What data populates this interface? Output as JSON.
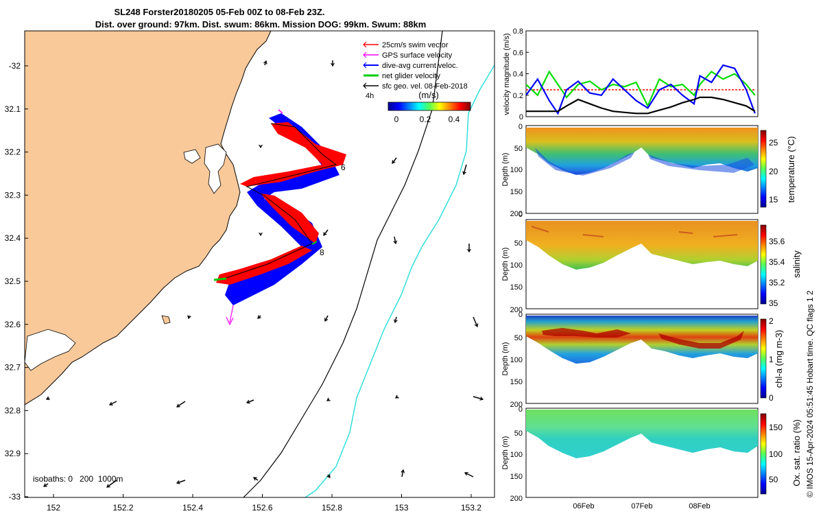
{
  "title": {
    "line1": "SL248 Forster20180205 05-Feb 00Z to 08-Feb 23Z.",
    "line2": "Dist. over ground: 97km. Dist. swum: 86km. Mission DOG: 99km. Swum: 88km"
  },
  "map": {
    "x_ticks": [
      "152",
      "152.2",
      "152.4",
      "152.6",
      "152.8",
      "153",
      "153.2"
    ],
    "y_ticks": [
      "-32",
      "32.1",
      "32.2",
      "32.3",
      "32.4",
      "32.5",
      "32.6",
      "32.7",
      "32.8",
      "32.9",
      "-33"
    ],
    "legend": [
      {
        "label": "25cm/s swim vector",
        "color": "#ff0000"
      },
      {
        "label": "GPS surface velocity",
        "color": "#ff00ff"
      },
      {
        "label": "dive-avg current veloc.",
        "color": "#0000ff"
      },
      {
        "label": "net glider velocity",
        "color": "#00cc00"
      },
      {
        "label": "sfc geo. vel. 08-Feb-2018",
        "color": "#000000"
      }
    ],
    "scale_label": "4h",
    "colorbar": {
      "unit": "(m/s)",
      "ticks": [
        "0",
        "0.2",
        "0.4"
      ]
    },
    "day_markers": [
      "6",
      "8"
    ],
    "isobaths_label": "isobaths: 0   200  1000m",
    "colors": {
      "land": "#f9c99a",
      "isobath_1000": "#33dddd"
    }
  },
  "chart_data": [
    {
      "type": "line",
      "ylabel": "velocity magnitude (m/s)",
      "ylim": [
        0,
        0.8
      ],
      "yticks": [
        "0",
        "0.2",
        "0.4",
        "0.6",
        "0.8"
      ],
      "x_days": [
        0,
        0.2,
        0.4,
        0.55,
        0.7,
        0.9,
        1.1,
        1.3,
        1.5,
        1.7,
        1.9,
        2.1,
        2.3,
        2.5,
        2.7,
        2.9,
        3.0,
        3.2,
        3.4,
        3.6,
        3.8,
        3.95
      ],
      "series": [
        {
          "color": "#ff0000",
          "values": [
            0.25,
            0.25,
            0.25,
            0.25,
            0.25,
            0.25,
            0.25,
            0.25,
            0.25,
            0.25,
            0.25,
            0.25,
            0.25,
            0.25,
            0.25,
            0.25,
            0.25,
            0.25,
            0.25,
            0.25,
            0.25,
            0.25
          ]
        },
        {
          "color": "#00dd00",
          "values": [
            0.3,
            0.2,
            0.42,
            0.3,
            0.18,
            0.3,
            0.33,
            0.25,
            0.3,
            0.28,
            0.32,
            0.1,
            0.35,
            0.28,
            0.3,
            0.2,
            0.3,
            0.42,
            0.35,
            0.4,
            0.3,
            0.2
          ]
        },
        {
          "color": "#0000ff",
          "values": [
            0.2,
            0.35,
            0.15,
            0.03,
            0.25,
            0.33,
            0.22,
            0.2,
            0.35,
            0.25,
            0.15,
            0.08,
            0.25,
            0.3,
            0.2,
            0.12,
            0.38,
            0.32,
            0.48,
            0.45,
            0.25,
            0.03
          ]
        },
        {
          "color": "#000000",
          "values": [
            0.05,
            0.05,
            0.05,
            0.05,
            0.1,
            0.16,
            0.12,
            0.08,
            0.05,
            0.04,
            0.03,
            0.03,
            0.06,
            0.09,
            0.13,
            0.16,
            0.18,
            0.18,
            0.16,
            0.13,
            0.1,
            0.05
          ]
        }
      ]
    },
    {
      "type": "heatmap",
      "ylabel": "Depth (m)",
      "cbar_label": "temperature (°C)",
      "cbar_ticks": [
        "15",
        "20",
        "25"
      ],
      "yticks": [
        "0",
        "50",
        "100",
        "150",
        "200"
      ]
    },
    {
      "type": "heatmap",
      "ylabel": "Depth (m)",
      "cbar_label": "salinity",
      "cbar_ticks": [
        "35",
        "35.2",
        "35.4",
        "35.6"
      ],
      "yticks": [
        "0",
        "50",
        "100",
        "150",
        "200"
      ]
    },
    {
      "type": "heatmap",
      "ylabel": "Depth (m)",
      "cbar_label": "chl-a (mg m-3)",
      "cbar_ticks": [
        "0",
        "1",
        "2"
      ],
      "yticks": [
        "0",
        "50",
        "100",
        "150",
        "200"
      ]
    },
    {
      "type": "heatmap",
      "ylabel": "Depth (m)",
      "cbar_label": "Ox. sat. ratio (%)",
      "cbar_ticks": [
        "50",
        "100",
        "150"
      ],
      "yticks": [
        "0",
        "50",
        "100",
        "150",
        "200"
      ]
    }
  ],
  "time_ticks": [
    "06Feb",
    "07Feb",
    "08Feb"
  ],
  "footer": "© IMOS 15-Apr-2024 05:51:45 Hobart time. QC flags 1  2"
}
